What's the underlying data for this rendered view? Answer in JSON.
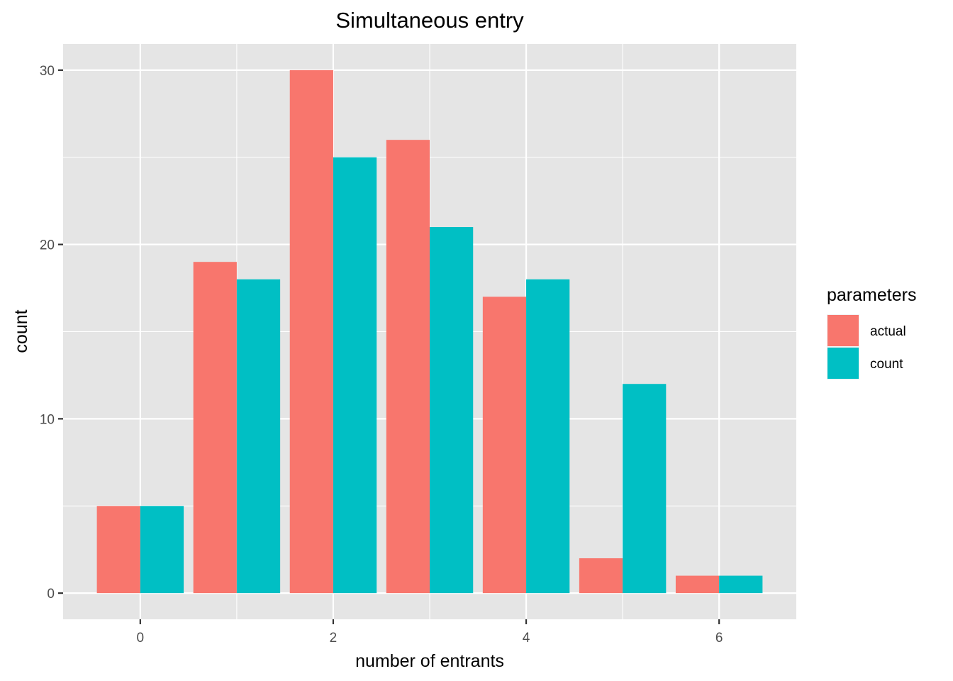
{
  "chart_data": {
    "type": "bar",
    "title": "Simultaneous entry",
    "xlabel": "number of entrants",
    "ylabel": "count",
    "x": [
      0,
      1,
      2,
      3,
      4,
      5,
      6
    ],
    "x_ticks": [
      0,
      2,
      4,
      6
    ],
    "y_ticks": [
      0,
      10,
      20,
      30
    ],
    "xlim": [
      -0.8,
      6.8
    ],
    "ylim": [
      -1.5,
      31.5
    ],
    "grid": true,
    "background": "#e5e5e5",
    "legend": {
      "title": "parameters",
      "placement": "right"
    },
    "series": [
      {
        "name": "actual",
        "color": "#f8766d",
        "values": [
          5,
          19,
          30,
          26,
          17,
          2,
          1
        ]
      },
      {
        "name": "count",
        "color": "#00bfc4",
        "values": [
          5,
          18,
          25,
          21,
          18,
          12,
          1
        ]
      }
    ]
  }
}
